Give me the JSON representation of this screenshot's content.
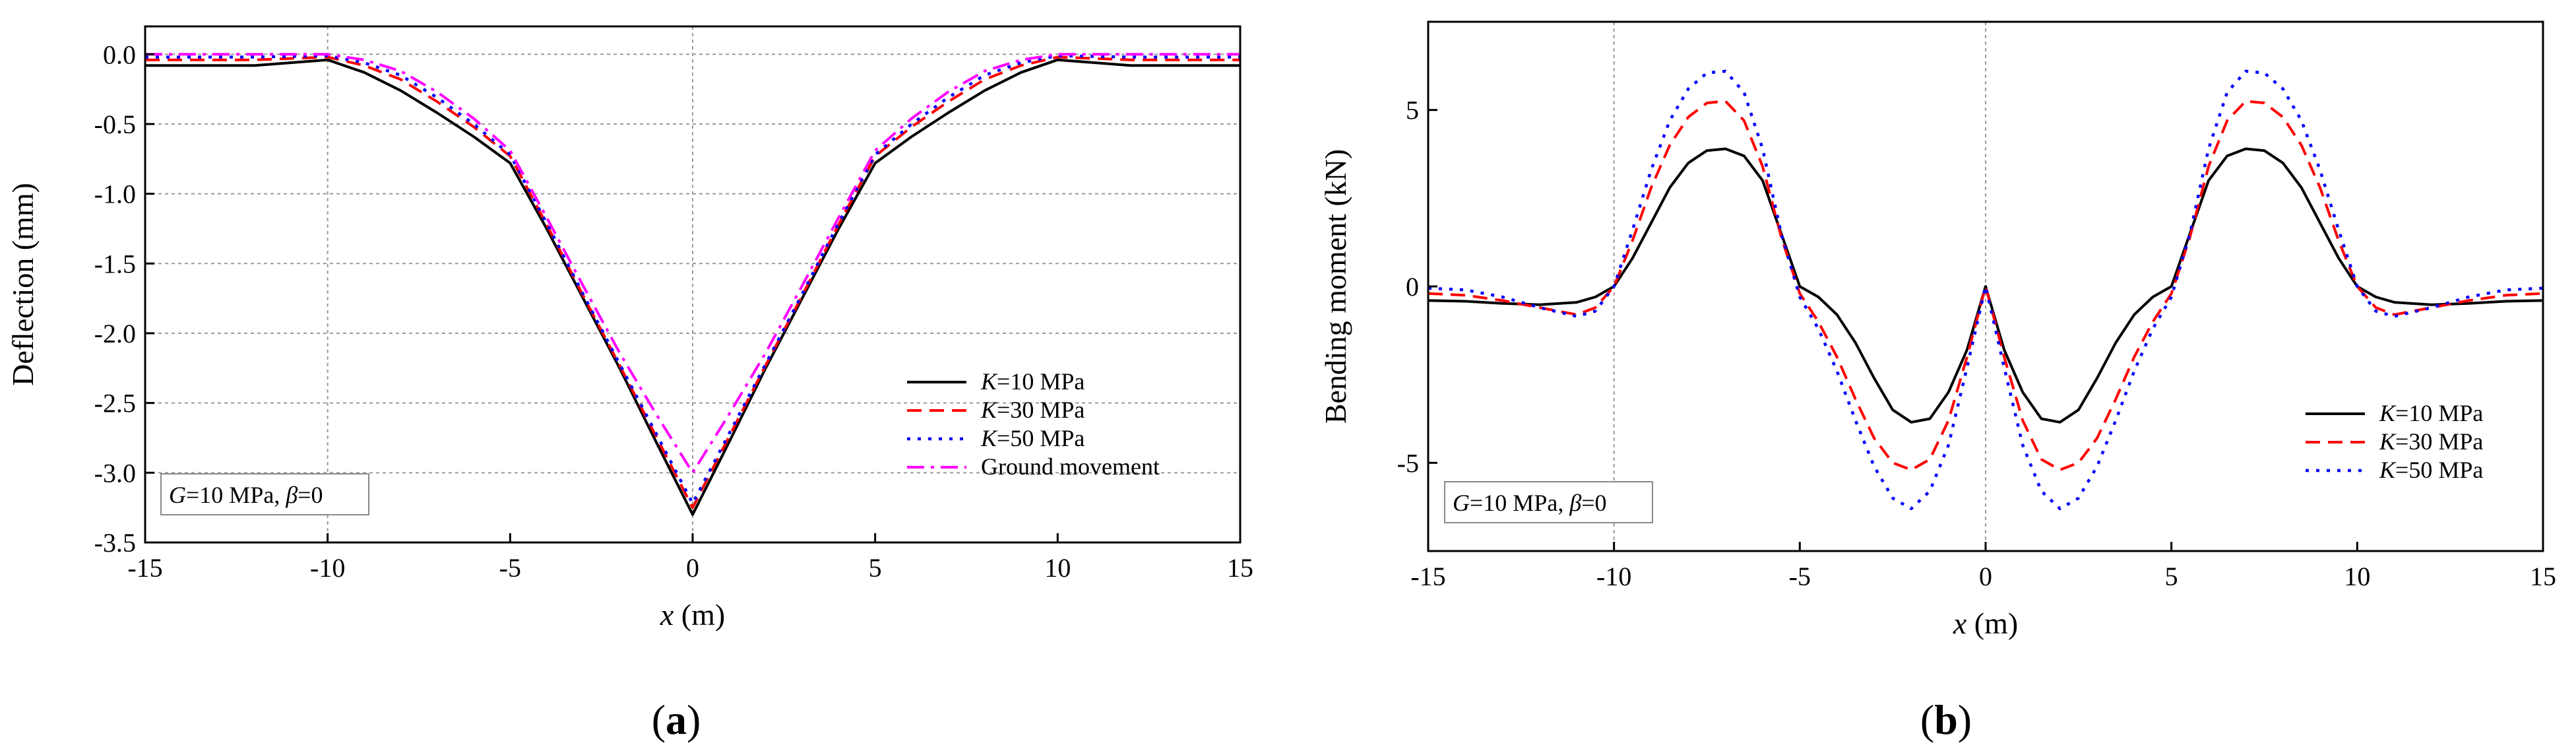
{
  "chart_data": [
    {
      "panel_label_open": "(",
      "panel_label_letter": "a",
      "panel_label_close": ")",
      "type": "line",
      "xlabel_var": "x",
      "xlabel_unit": " (m)",
      "ylabel": "Deflection (mm)",
      "xlim": [
        -15,
        15
      ],
      "ylim": [
        -3.5,
        0.2
      ],
      "xticks": [
        -15,
        -10,
        -5,
        0,
        5,
        10,
        15
      ],
      "yticks": [
        0.0,
        -0.5,
        -1.0,
        -1.5,
        -2.0,
        -2.5,
        -3.0,
        -3.5
      ],
      "xtick_labels": [
        "-15",
        "-10",
        "-5",
        "0",
        "5",
        "10",
        "15"
      ],
      "ytick_labels": [
        "0.0",
        "-0.5",
        "-1.0",
        "-1.5",
        "-2.0",
        "-2.5",
        "-3.0",
        "-3.5"
      ],
      "grid": true,
      "annotation": {
        "g": "G",
        "g_text": "=10 MPa, ",
        "beta": "β",
        "beta_text": "=0"
      },
      "legend_position": "bottom-right",
      "series": [
        {
          "name": "K=10 MPa",
          "name_var": "K",
          "name_text": "=10 MPa",
          "color": "#000000",
          "style": "solid",
          "x": [
            -15,
            -12,
            -10,
            -9,
            -8,
            -7,
            -6,
            -5,
            -4,
            -3,
            -2,
            -1,
            0,
            1,
            2,
            3,
            4,
            5,
            6,
            7,
            8,
            9,
            10,
            12,
            15
          ],
          "y": [
            -0.08,
            -0.08,
            -0.04,
            -0.13,
            -0.26,
            -0.42,
            -0.59,
            -0.78,
            -1.25,
            -1.75,
            -2.25,
            -2.78,
            -3.3,
            -2.78,
            -2.25,
            -1.75,
            -1.25,
            -0.78,
            -0.59,
            -0.42,
            -0.26,
            -0.13,
            -0.04,
            -0.08,
            -0.08
          ]
        },
        {
          "name": "K=30 MPa",
          "name_var": "K",
          "name_text": "=30 MPa",
          "color": "#ff0000",
          "style": "dash",
          "x": [
            -15,
            -12,
            -10,
            -9,
            -8,
            -7,
            -6,
            -5,
            -4,
            -3,
            -2,
            -1,
            0,
            1,
            2,
            3,
            4,
            5,
            6,
            7,
            8,
            9,
            10,
            12,
            15
          ],
          "y": [
            -0.04,
            -0.04,
            -0.02,
            -0.08,
            -0.18,
            -0.34,
            -0.52,
            -0.73,
            -1.22,
            -1.73,
            -2.23,
            -2.74,
            -3.25,
            -2.74,
            -2.23,
            -1.73,
            -1.22,
            -0.73,
            -0.52,
            -0.34,
            -0.18,
            -0.08,
            -0.02,
            -0.04,
            -0.04
          ]
        },
        {
          "name": "K=50 MPa",
          "name_var": "K",
          "name_text": "=50 MPa",
          "color": "#0000ff",
          "style": "dot",
          "x": [
            -15,
            -12,
            -10,
            -9,
            -8,
            -7,
            -6,
            -5,
            -4,
            -3,
            -2,
            -1,
            0,
            1,
            2,
            3,
            4,
            5,
            6,
            7,
            8,
            9,
            10,
            12,
            15
          ],
          "y": [
            -0.02,
            -0.02,
            -0.01,
            -0.06,
            -0.15,
            -0.31,
            -0.5,
            -0.72,
            -1.21,
            -1.72,
            -2.22,
            -2.72,
            -3.22,
            -2.72,
            -2.22,
            -1.72,
            -1.21,
            -0.72,
            -0.5,
            -0.31,
            -0.15,
            -0.06,
            -0.01,
            -0.02,
            -0.02
          ]
        },
        {
          "name": "Ground movement",
          "name_var": "",
          "name_text": "Ground movement",
          "color": "#ff00ff",
          "style": "dashdot",
          "x": [
            -15,
            -12,
            -10,
            -9,
            -8,
            -7,
            -6,
            -5,
            -4,
            -3,
            -2,
            -1,
            0,
            1,
            2,
            3,
            4,
            5,
            6,
            7,
            8,
            9,
            10,
            12,
            15
          ],
          "y": [
            0.0,
            0.0,
            0.0,
            -0.04,
            -0.12,
            -0.27,
            -0.46,
            -0.69,
            -1.17,
            -1.66,
            -2.14,
            -2.58,
            -3.0,
            -2.58,
            -2.14,
            -1.66,
            -1.17,
            -0.69,
            -0.46,
            -0.27,
            -0.12,
            -0.04,
            0.0,
            0.0,
            0.0
          ]
        }
      ]
    },
    {
      "panel_label_open": "(",
      "panel_label_letter": "b",
      "panel_label_close": ")",
      "type": "line",
      "xlabel_var": "x",
      "xlabel_unit": " (m)",
      "ylabel": "Bending moment (kN)",
      "xlim": [
        -15,
        15
      ],
      "ylim": [
        -7.5,
        7.5
      ],
      "xticks": [
        -15,
        -10,
        -5,
        0,
        5,
        10,
        15
      ],
      "yticks": [
        5,
        0,
        -5
      ],
      "xtick_labels": [
        "-15",
        "-10",
        "-5",
        "0",
        "5",
        "10",
        "15"
      ],
      "ytick_labels": [
        "5",
        "0",
        "-5"
      ],
      "grid": false,
      "annotation": {
        "g": "G",
        "g_text": "=10 MPa, ",
        "beta": "β",
        "beta_text": "=0"
      },
      "legend_position": "bottom-right",
      "series": [
        {
          "name": "K=10 MPa",
          "name_var": "K",
          "name_text": "=10 MPa",
          "color": "#000000",
          "style": "solid",
          "x": [
            -15,
            -14,
            -13,
            -12,
            -11,
            -10.5,
            -10,
            -9.5,
            -9,
            -8.5,
            -8,
            -7.5,
            -7,
            -6.5,
            -6,
            -5.5,
            -5,
            -4.5,
            -4,
            -3.5,
            -3,
            -2.5,
            -2,
            -1.5,
            -1,
            -0.5,
            0,
            0.5,
            1,
            1.5,
            2,
            2.5,
            3,
            3.5,
            4,
            4.5,
            5,
            5.5,
            6,
            6.5,
            7,
            7.5,
            8,
            8.5,
            9,
            9.5,
            10,
            10.5,
            11,
            12,
            13,
            14,
            15
          ],
          "y": [
            -0.4,
            -0.42,
            -0.48,
            -0.52,
            -0.45,
            -0.3,
            0,
            0.8,
            1.8,
            2.8,
            3.5,
            3.85,
            3.9,
            3.7,
            3.0,
            1.5,
            0,
            -0.3,
            -0.8,
            -1.6,
            -2.6,
            -3.5,
            -3.85,
            -3.75,
            -3.0,
            -1.8,
            0,
            -1.8,
            -3.0,
            -3.75,
            -3.85,
            -3.5,
            -2.6,
            -1.6,
            -0.8,
            -0.3,
            0,
            1.5,
            3.0,
            3.7,
            3.9,
            3.85,
            3.5,
            2.8,
            1.8,
            0.8,
            0,
            -0.3,
            -0.45,
            -0.52,
            -0.48,
            -0.42,
            -0.4
          ]
        },
        {
          "name": "K=30 MPa",
          "name_var": "K",
          "name_text": "=30 MPa",
          "color": "#ff0000",
          "style": "dash",
          "x": [
            -15,
            -14,
            -13,
            -12,
            -11,
            -10.5,
            -10,
            -9.5,
            -9,
            -8.5,
            -8,
            -7.5,
            -7,
            -6.5,
            -6,
            -5.5,
            -5,
            -4.5,
            -4,
            -3.5,
            -3,
            -2.5,
            -2,
            -1.5,
            -1,
            -0.5,
            0,
            0.5,
            1,
            1.5,
            2,
            2.5,
            3,
            3.5,
            4,
            4.5,
            5,
            5.5,
            6,
            6.5,
            7,
            7.5,
            8,
            8.5,
            9,
            9.5,
            10,
            10.5,
            11,
            12,
            13,
            14,
            15
          ],
          "y": [
            -0.2,
            -0.25,
            -0.4,
            -0.6,
            -0.8,
            -0.6,
            0,
            1.3,
            2.8,
            4.0,
            4.8,
            5.2,
            5.25,
            4.7,
            3.4,
            1.4,
            -0.2,
            -1.0,
            -2.0,
            -3.2,
            -4.3,
            -5.0,
            -5.2,
            -4.9,
            -3.8,
            -2.0,
            0,
            -2.0,
            -3.8,
            -4.9,
            -5.2,
            -5.0,
            -4.3,
            -3.2,
            -2.0,
            -1.0,
            -0.2,
            1.4,
            3.4,
            4.7,
            5.25,
            5.2,
            4.8,
            4.0,
            2.8,
            1.3,
            0,
            -0.6,
            -0.8,
            -0.6,
            -0.4,
            -0.25,
            -0.2
          ]
        },
        {
          "name": "K=50 MPa",
          "name_var": "K",
          "name_text": "=50 MPa",
          "color": "#0000ff",
          "style": "dot",
          "x": [
            -15,
            -14,
            -13,
            -12,
            -11,
            -10.5,
            -10,
            -9.5,
            -9,
            -8.5,
            -8,
            -7.5,
            -7,
            -6.5,
            -6,
            -5.5,
            -5,
            -4.5,
            -4,
            -3.5,
            -3,
            -2.5,
            -2,
            -1.5,
            -1,
            -0.5,
            0,
            0.5,
            1,
            1.5,
            2,
            2.5,
            3,
            3.5,
            4,
            4.5,
            5,
            5.5,
            6,
            6.5,
            7,
            7.5,
            8,
            8.5,
            9,
            9.5,
            10,
            10.5,
            11,
            12,
            13,
            14,
            15
          ],
          "y": [
            -0.05,
            -0.1,
            -0.3,
            -0.6,
            -0.85,
            -0.7,
            0,
            1.6,
            3.3,
            4.7,
            5.6,
            6.05,
            6.1,
            5.5,
            3.9,
            1.5,
            -0.3,
            -1.2,
            -2.4,
            -3.8,
            -5.1,
            -6.0,
            -6.3,
            -5.8,
            -4.5,
            -2.3,
            0,
            -2.3,
            -4.5,
            -5.8,
            -6.3,
            -6.0,
            -5.1,
            -3.8,
            -2.4,
            -1.2,
            -0.3,
            1.5,
            3.9,
            5.5,
            6.1,
            6.05,
            5.6,
            4.7,
            3.3,
            1.6,
            0,
            -0.7,
            -0.85,
            -0.6,
            -0.3,
            -0.1,
            -0.05
          ]
        }
      ]
    }
  ]
}
